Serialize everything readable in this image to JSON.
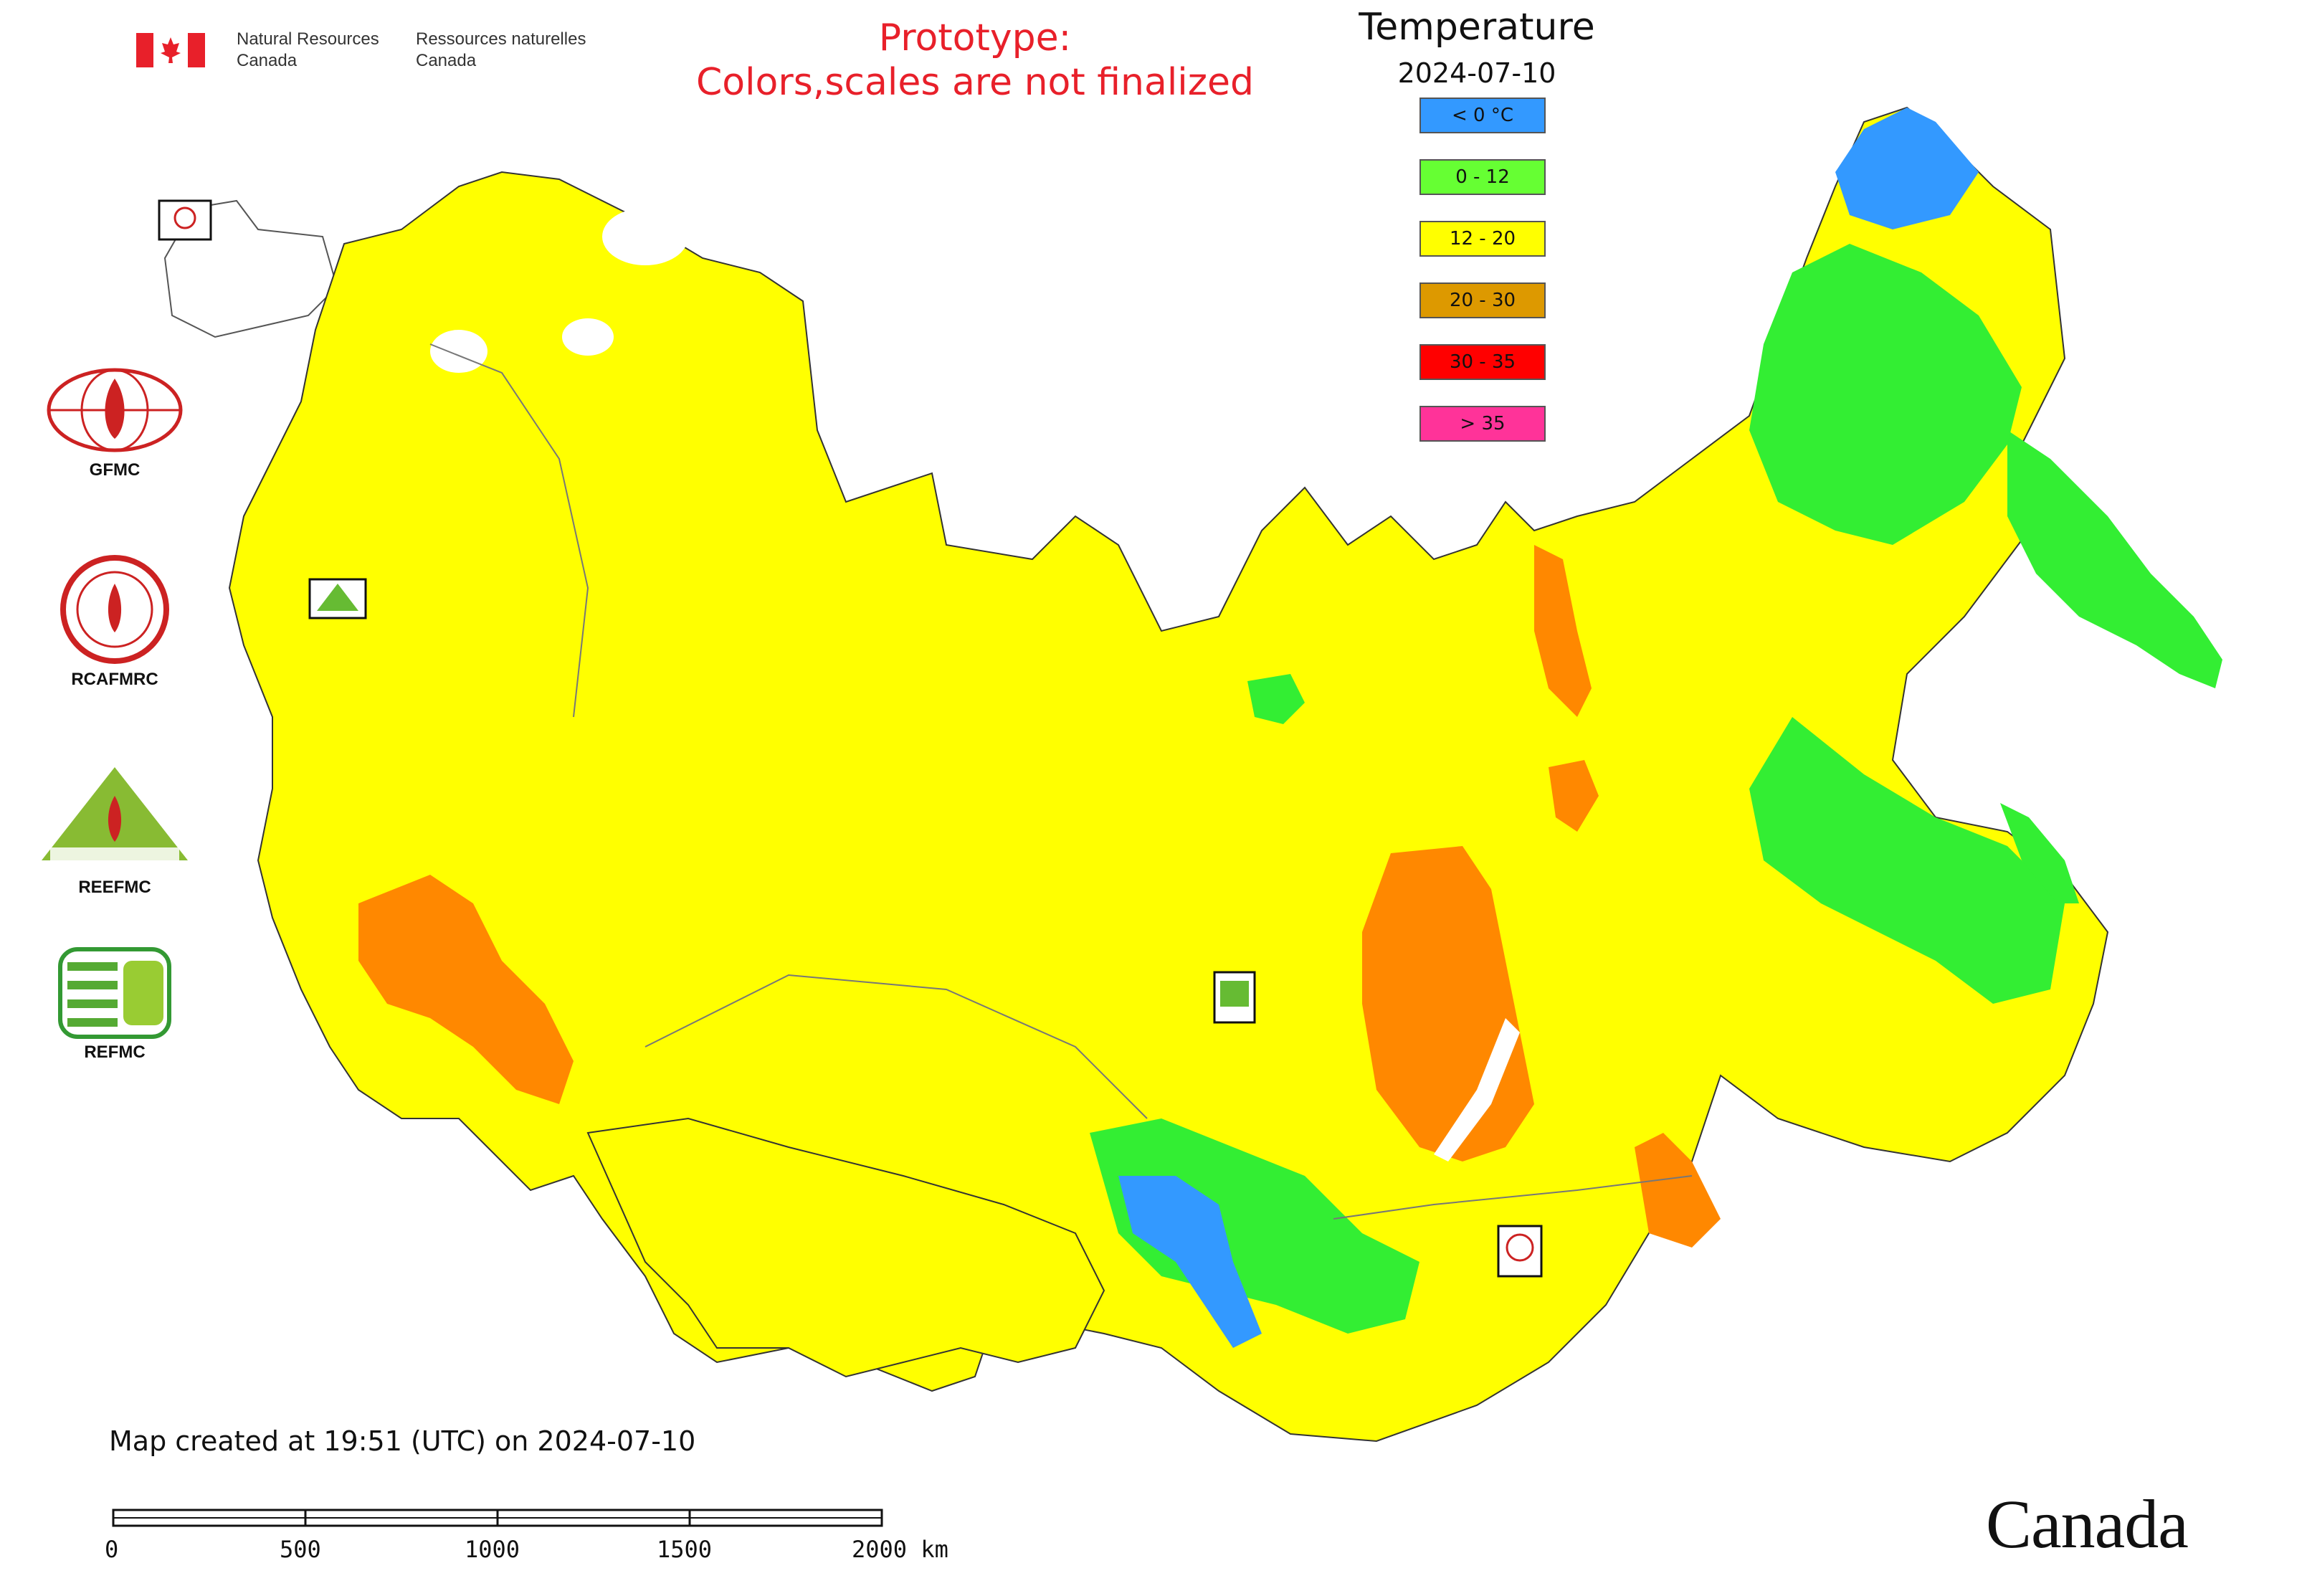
{
  "header": {
    "dept_en_line1": "Natural Resources",
    "dept_en_line2": "Canada",
    "dept_fr_line1": "Ressources naturelles",
    "dept_fr_line2": "Canada",
    "prototype_line1": "Prototype:",
    "prototype_line2": "Colors,scales are not finalized"
  },
  "legend": {
    "title": "Temperature",
    "date": "2024-07-10",
    "classes": [
      {
        "label": "< 0 °C",
        "color": "#3399ff"
      },
      {
        "label": "0 - 12",
        "color": "#66ff33"
      },
      {
        "label": "12 - 20",
        "color": "#ffff00"
      },
      {
        "label": "20 - 30",
        "color": "#dd9900"
      },
      {
        "label": "30 - 35",
        "color": "#ff0000"
      },
      {
        "label": "> 35",
        "color": "#ff3399"
      }
    ]
  },
  "side_logos": [
    "GFMC",
    "RCAFMRC",
    "REEFMC",
    "REFMC"
  ],
  "map_markers": [
    "GFMC",
    "REEFMC",
    "REFMC",
    "RCAFMRC"
  ],
  "footer": {
    "created": "Map created at 19:51 (UTC) on 2024-07-10",
    "scale_ticks": [
      "0",
      "500",
      "1000",
      "1500",
      "2000 km"
    ],
    "wordmark": "Canada"
  },
  "colors": {
    "yellow": "#ffff00",
    "green": "#33ee33",
    "blue": "#3399ff",
    "orange": "#ff8800",
    "proto_red": "#e8202a"
  }
}
